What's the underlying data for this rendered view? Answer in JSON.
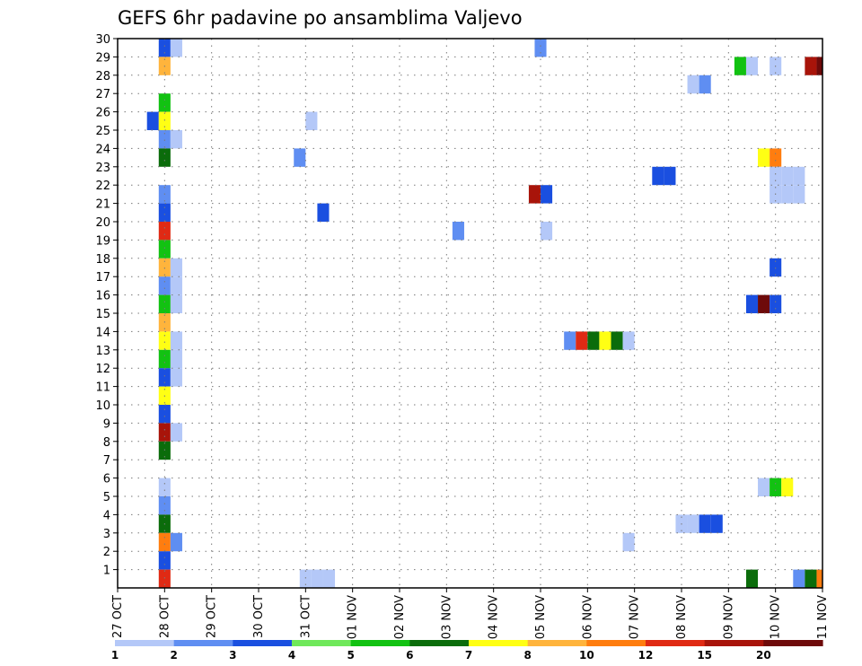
{
  "chart_data": {
    "type": "heatmap",
    "title": "GEFS 6hr padavine po ansamblima Valjevo",
    "xlabel": "",
    "ylabel": "",
    "y_ticks": [
      1,
      2,
      3,
      4,
      5,
      6,
      7,
      8,
      9,
      10,
      11,
      12,
      13,
      14,
      15,
      16,
      17,
      18,
      19,
      20,
      21,
      22,
      23,
      24,
      25,
      26,
      27,
      28,
      29,
      30
    ],
    "ylim": [
      0,
      30
    ],
    "x_ticks": [
      "27 OCT",
      "28 OCT",
      "29 OCT",
      "30 OCT",
      "31 OCT",
      "01 NOV",
      "02 NOV",
      "03 NOV",
      "04 NOV",
      "05 NOV",
      "06 NOV",
      "07 NOV",
      "08 NOV",
      "09 NOV",
      "10 NOV",
      "11 NOV"
    ],
    "x_units": "6-hour steps from 27 OCT 00Z",
    "xlim": [
      0,
      60
    ],
    "grid": true,
    "color_levels": [
      1,
      2,
      3,
      4,
      5,
      6,
      7,
      8,
      10,
      12,
      15,
      20
    ],
    "legend_labels": [
      "1",
      "2",
      "3",
      "4",
      "5",
      "6",
      "7",
      "8",
      "10",
      "12",
      "15",
      "20"
    ],
    "colors": [
      "#b4c8f8",
      "#5f8ef2",
      "#1a4fe0",
      "#6fe85a",
      "#12c212",
      "#0b6c0b",
      "#ffff14",
      "#ffb43c",
      "#ff7d0f",
      "#e02a14",
      "#a8140a",
      "#6e0a0a"
    ],
    "cells": [
      {
        "member": 30,
        "x": 4.0,
        "value": 3
      },
      {
        "member": 30,
        "x": 5.0,
        "value": 1
      },
      {
        "member": 30,
        "x": 36.0,
        "value": 2
      },
      {
        "member": 29,
        "x": 4.0,
        "value": 8
      },
      {
        "member": 29,
        "x": 53.0,
        "value": 5
      },
      {
        "member": 29,
        "x": 54.0,
        "value": 1
      },
      {
        "member": 29,
        "x": 56.0,
        "value": 1
      },
      {
        "member": 29,
        "x": 59.0,
        "value": 15
      },
      {
        "member": 29,
        "x": 60.0,
        "value": 20
      },
      {
        "member": 28,
        "x": 49.0,
        "value": 1
      },
      {
        "member": 28,
        "x": 50.0,
        "value": 2
      },
      {
        "member": 27,
        "x": 4.0,
        "value": 5
      },
      {
        "member": 26,
        "x": 3.0,
        "value": 3
      },
      {
        "member": 26,
        "x": 4.0,
        "value": 7
      },
      {
        "member": 26,
        "x": 16.5,
        "value": 1
      },
      {
        "member": 25,
        "x": 4.0,
        "value": 2
      },
      {
        "member": 25,
        "x": 5.0,
        "value": 1
      },
      {
        "member": 24,
        "x": 4.0,
        "value": 6
      },
      {
        "member": 24,
        "x": 15.5,
        "value": 2
      },
      {
        "member": 24,
        "x": 55.0,
        "value": 7
      },
      {
        "member": 24,
        "x": 56.0,
        "value": 10
      },
      {
        "member": 23,
        "x": 46.0,
        "value": 3
      },
      {
        "member": 23,
        "x": 47.0,
        "value": 3
      },
      {
        "member": 23,
        "x": 56.0,
        "value": 1
      },
      {
        "member": 23,
        "x": 57.0,
        "value": 1
      },
      {
        "member": 23,
        "x": 58.0,
        "value": 1
      },
      {
        "member": 22,
        "x": 4.0,
        "value": 2
      },
      {
        "member": 22,
        "x": 35.5,
        "value": 15
      },
      {
        "member": 22,
        "x": 36.5,
        "value": 3
      },
      {
        "member": 22,
        "x": 56.0,
        "value": 1
      },
      {
        "member": 22,
        "x": 57.0,
        "value": 1
      },
      {
        "member": 22,
        "x": 58.0,
        "value": 1
      },
      {
        "member": 21,
        "x": 4.0,
        "value": 3
      },
      {
        "member": 21,
        "x": 17.5,
        "value": 3
      },
      {
        "member": 20,
        "x": 4.0,
        "value": 12
      },
      {
        "member": 20,
        "x": 29.0,
        "value": 2
      },
      {
        "member": 20,
        "x": 36.5,
        "value": 1
      },
      {
        "member": 19,
        "x": 4.0,
        "value": 5
      },
      {
        "member": 18,
        "x": 4.0,
        "value": 8
      },
      {
        "member": 18,
        "x": 5.0,
        "value": 1
      },
      {
        "member": 18,
        "x": 56.0,
        "value": 3
      },
      {
        "member": 17,
        "x": 4.0,
        "value": 2
      },
      {
        "member": 17,
        "x": 5.0,
        "value": 1
      },
      {
        "member": 16,
        "x": 4.0,
        "value": 5
      },
      {
        "member": 16,
        "x": 5.0,
        "value": 1
      },
      {
        "member": 16,
        "x": 54.0,
        "value": 3
      },
      {
        "member": 16,
        "x": 55.0,
        "value": 20
      },
      {
        "member": 16,
        "x": 56.0,
        "value": 3
      },
      {
        "member": 15,
        "x": 4.0,
        "value": 8
      },
      {
        "member": 14,
        "x": 4.0,
        "value": 7
      },
      {
        "member": 14,
        "x": 5.0,
        "value": 1
      },
      {
        "member": 14,
        "x": 38.5,
        "value": 2
      },
      {
        "member": 14,
        "x": 39.5,
        "value": 12
      },
      {
        "member": 14,
        "x": 40.5,
        "value": 6
      },
      {
        "member": 14,
        "x": 41.5,
        "value": 7
      },
      {
        "member": 14,
        "x": 42.5,
        "value": 6
      },
      {
        "member": 14,
        "x": 43.5,
        "value": 1
      },
      {
        "member": 13,
        "x": 4.0,
        "value": 5
      },
      {
        "member": 13,
        "x": 5.0,
        "value": 1
      },
      {
        "member": 12,
        "x": 4.0,
        "value": 3
      },
      {
        "member": 12,
        "x": 5.0,
        "value": 1
      },
      {
        "member": 11,
        "x": 4.0,
        "value": 7
      },
      {
        "member": 10,
        "x": 4.0,
        "value": 3
      },
      {
        "member": 9,
        "x": 4.0,
        "value": 15
      },
      {
        "member": 9,
        "x": 5.0,
        "value": 1
      },
      {
        "member": 8,
        "x": 4.0,
        "value": 6
      },
      {
        "member": 6,
        "x": 4.0,
        "value": 1
      },
      {
        "member": 6,
        "x": 55.0,
        "value": 1
      },
      {
        "member": 6,
        "x": 56.0,
        "value": 5
      },
      {
        "member": 6,
        "x": 57.0,
        "value": 7
      },
      {
        "member": 5,
        "x": 4.0,
        "value": 2
      },
      {
        "member": 4,
        "x": 4.0,
        "value": 6
      },
      {
        "member": 4,
        "x": 48.0,
        "value": 1
      },
      {
        "member": 4,
        "x": 49.0,
        "value": 1
      },
      {
        "member": 4,
        "x": 50.0,
        "value": 3
      },
      {
        "member": 4,
        "x": 51.0,
        "value": 3
      },
      {
        "member": 3,
        "x": 4.0,
        "value": 10
      },
      {
        "member": 3,
        "x": 5.0,
        "value": 2
      },
      {
        "member": 3,
        "x": 43.5,
        "value": 1
      },
      {
        "member": 2,
        "x": 4.0,
        "value": 3
      },
      {
        "member": 1,
        "x": 4.0,
        "value": 12
      },
      {
        "member": 1,
        "x": 16.0,
        "value": 1
      },
      {
        "member": 1,
        "x": 17.0,
        "value": 1
      },
      {
        "member": 1,
        "x": 18.0,
        "value": 1
      },
      {
        "member": 1,
        "x": 54.0,
        "value": 6
      },
      {
        "member": 1,
        "x": 58.0,
        "value": 2
      },
      {
        "member": 1,
        "x": 59.0,
        "value": 6
      },
      {
        "member": 1,
        "x": 60.0,
        "value": 10
      }
    ]
  }
}
